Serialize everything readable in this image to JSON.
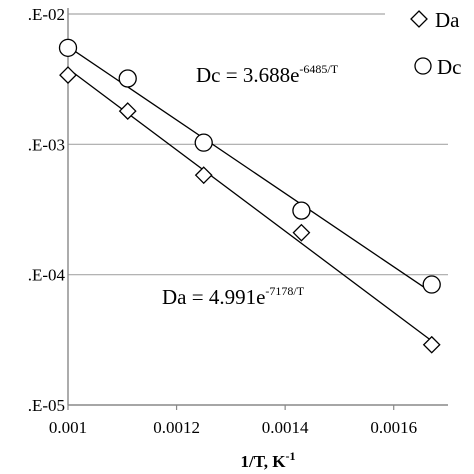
{
  "chart_data": {
    "type": "scatter",
    "xlabel": "1/T, K",
    "xlabel_sup": "-1",
    "ylabel": "",
    "xlim": [
      0.001,
      0.0017
    ],
    "ylim": [
      1e-05,
      0.01
    ],
    "yscale": "log",
    "x_ticks": [
      0.001,
      0.0012,
      0.0014,
      0.0016
    ],
    "x_tick_labels": [
      "0.001",
      "0.0012",
      "0.0014",
      "0.0016"
    ],
    "y_ticks": [
      0.01,
      0.001,
      0.0001,
      1e-05
    ],
    "y_tick_labels": [
      ".E-02",
      ".E-03",
      ".E-04",
      ".E-05"
    ],
    "grid": "horizontal",
    "legend_position": "top-right",
    "series": [
      {
        "name": "Da",
        "marker": "diamond",
        "x": [
          0.001,
          0.00111,
          0.00125,
          0.00143,
          0.00167
        ],
        "y": [
          0.0034,
          0.0018,
          0.00058,
          0.00021,
          2.9e-05
        ],
        "fit": {
          "a": 4.991,
          "b": 7178
        }
      },
      {
        "name": "Dc",
        "marker": "circle",
        "x": [
          0.001,
          0.00111,
          0.00125,
          0.00143,
          0.00167
        ],
        "y": [
          0.0055,
          0.0032,
          0.00103,
          0.00031,
          8.4e-05
        ],
        "fit": {
          "a": 3.688,
          "b": 6485
        }
      }
    ],
    "annotations": [
      {
        "name": "Dc",
        "text_base": "Dc = 3.688e",
        "text_exp": "-6485/T"
      },
      {
        "name": "Da",
        "text_base": "Da = 4.991e",
        "text_exp": "-7178/T"
      }
    ]
  }
}
